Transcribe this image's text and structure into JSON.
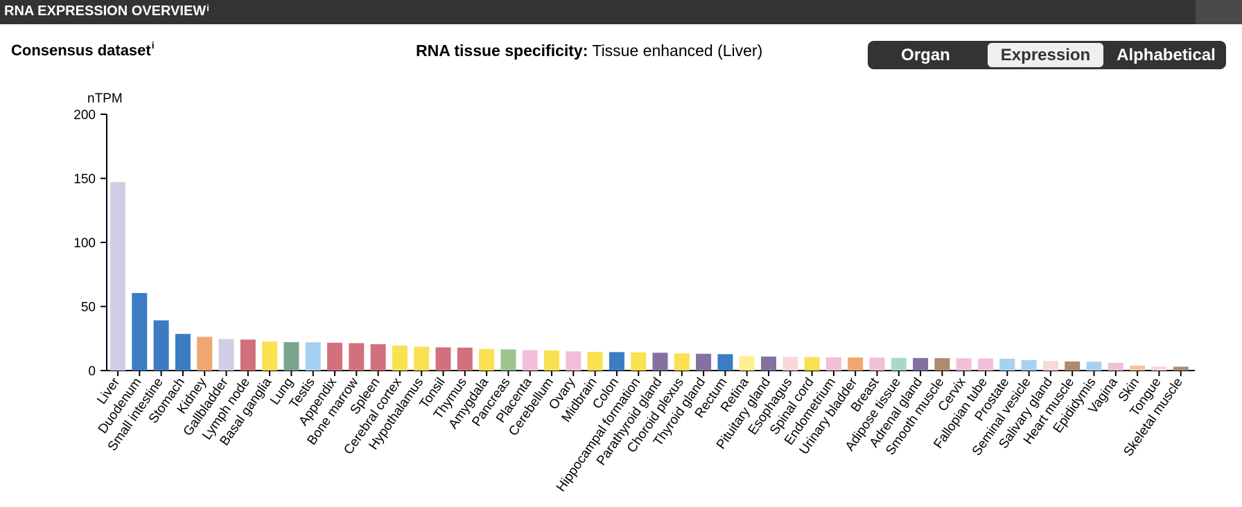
{
  "header": {
    "title": "RNA EXPRESSION OVERVIEW",
    "info_mark": "i"
  },
  "dataset": {
    "label": "Consensus dataset",
    "info_mark": "i"
  },
  "specificity": {
    "label": "RNA tissue specificity:",
    "value": "Tissue enhanced (Liver)"
  },
  "sort_toggle": {
    "options": [
      "Organ",
      "Expression",
      "Alphabetical"
    ],
    "selected": "Expression"
  },
  "chart_data": {
    "type": "bar",
    "ylabel": "nTPM",
    "xlabel": "",
    "ylim": [
      0,
      200
    ],
    "yticks": [
      0,
      50,
      100,
      150,
      200
    ],
    "grid": false,
    "categories": [
      "Liver",
      "Duodenum",
      "Small intestine",
      "Stomach",
      "Kidney",
      "Gallbladder",
      "Lymph node",
      "Basal ganglia",
      "Lung",
      "Testis",
      "Appendix",
      "Bone marrow",
      "Spleen",
      "Cerebral cortex",
      "Hypothalamus",
      "Tonsil",
      "Thymus",
      "Amygdala",
      "Pancreas",
      "Placenta",
      "Cerebellum",
      "Ovary",
      "Midbrain",
      "Colon",
      "Hippocampal formation",
      "Parathyroid gland",
      "Choroid plexus",
      "Thyroid gland",
      "Rectum",
      "Retina",
      "Pituitary gland",
      "Esophagus",
      "Spinal cord",
      "Endometrium",
      "Urinary bladder",
      "Breast",
      "Adipose tissue",
      "Adrenal gland",
      "Smooth muscle",
      "Cervix",
      "Fallopian tube",
      "Prostate",
      "Seminal vesicle",
      "Salivary gland",
      "Heart muscle",
      "Epididymis",
      "Vagina",
      "Skin",
      "Tongue",
      "Skeletal muscle"
    ],
    "values": [
      147.1,
      60.5,
      39.2,
      28.6,
      26.3,
      24.6,
      24.2,
      22.6,
      22.2,
      22.1,
      21.7,
      21.4,
      20.6,
      19.5,
      18.6,
      18.1,
      17.9,
      16.8,
      16.5,
      15.9,
      15.7,
      15.0,
      14.6,
      14.4,
      14.2,
      13.9,
      13.4,
      13.1,
      12.8,
      11.2,
      10.9,
      10.8,
      10.6,
      10.4,
      10.2,
      10.1,
      9.9,
      9.8,
      9.7,
      9.6,
      9.5,
      9.3,
      8.2,
      7.5,
      7.1,
      6.9,
      6.0,
      3.9,
      3.2,
      3.0
    ],
    "colors": [
      "#d2cde6",
      "#3b7cc2",
      "#3b7cc2",
      "#3b7cc2",
      "#f0a671",
      "#d2cde6",
      "#d2717d",
      "#f9e150",
      "#7ba48d",
      "#a7d1f2",
      "#d2717d",
      "#d2717d",
      "#d2717d",
      "#f9e150",
      "#f9e150",
      "#d2717d",
      "#d2717d",
      "#f9e150",
      "#9ec38e",
      "#f1bfd8",
      "#f9e150",
      "#f1bfd8",
      "#f9e150",
      "#3b7cc2",
      "#f9e150",
      "#85719f",
      "#f9e150",
      "#85719f",
      "#3b7cc2",
      "#fff08f",
      "#85719f",
      "#fad8d8",
      "#f9e150",
      "#f1bfd8",
      "#f0a671",
      "#f1bfd8",
      "#a8d8c9",
      "#85719f",
      "#ae8a6f",
      "#f1bfd8",
      "#f1bfd8",
      "#a7d1f2",
      "#a7d1f2",
      "#fad8d8",
      "#ae8a6f",
      "#a7d1f2",
      "#f1bfd8",
      "#f7c2a5",
      "#fad8d8",
      "#ae8a6f"
    ]
  }
}
